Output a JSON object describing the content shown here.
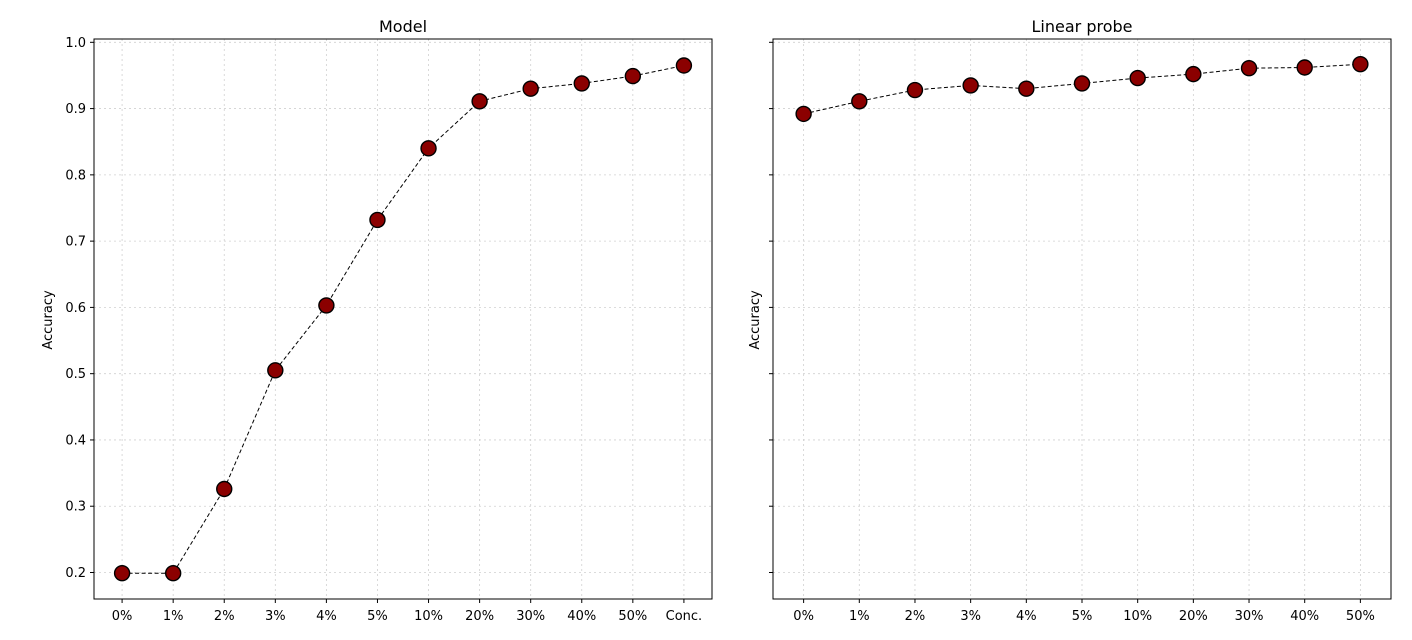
{
  "chart_data": [
    {
      "type": "line",
      "title": "Model",
      "xlabel": "",
      "ylabel": "Accuracy",
      "categories": [
        "0%",
        "1%",
        "2%",
        "3%",
        "4%",
        "5%",
        "10%",
        "20%",
        "30%",
        "40%",
        "50%",
        "Conc."
      ],
      "series": [
        {
          "values": [
            0.199,
            0.199,
            0.326,
            0.505,
            0.603,
            0.732,
            0.84,
            0.911,
            0.93,
            0.938,
            0.949,
            0.965
          ]
        }
      ],
      "ylim": [
        0.16,
        1.005
      ],
      "yticks": [
        "0.2",
        "0.3",
        "0.4",
        "0.5",
        "0.6",
        "0.7",
        "0.8",
        "0.9",
        "1.0"
      ],
      "grid": true,
      "line_style": "dashed",
      "line_color": "#000000",
      "marker_color": "#8b0000",
      "marker_edge_color": "#000000"
    },
    {
      "type": "line",
      "title": "Linear probe",
      "xlabel": "",
      "ylabel": "Accuracy",
      "categories": [
        "0%",
        "1%",
        "2%",
        "3%",
        "4%",
        "5%",
        "10%",
        "20%",
        "30%",
        "40%",
        "50%"
      ],
      "series": [
        {
          "values": [
            0.892,
            0.911,
            0.928,
            0.935,
            0.93,
            0.938,
            0.946,
            0.952,
            0.961,
            0.962,
            0.967
          ]
        }
      ],
      "ylim": [
        0.16,
        1.005
      ],
      "yticks": [
        "",
        "",
        "",
        "",
        "",
        "",
        "",
        "",
        ""
      ],
      "grid": true,
      "line_style": "dashed",
      "line_color": "#000000",
      "marker_color": "#8b0000",
      "marker_edge_color": "#000000"
    }
  ]
}
